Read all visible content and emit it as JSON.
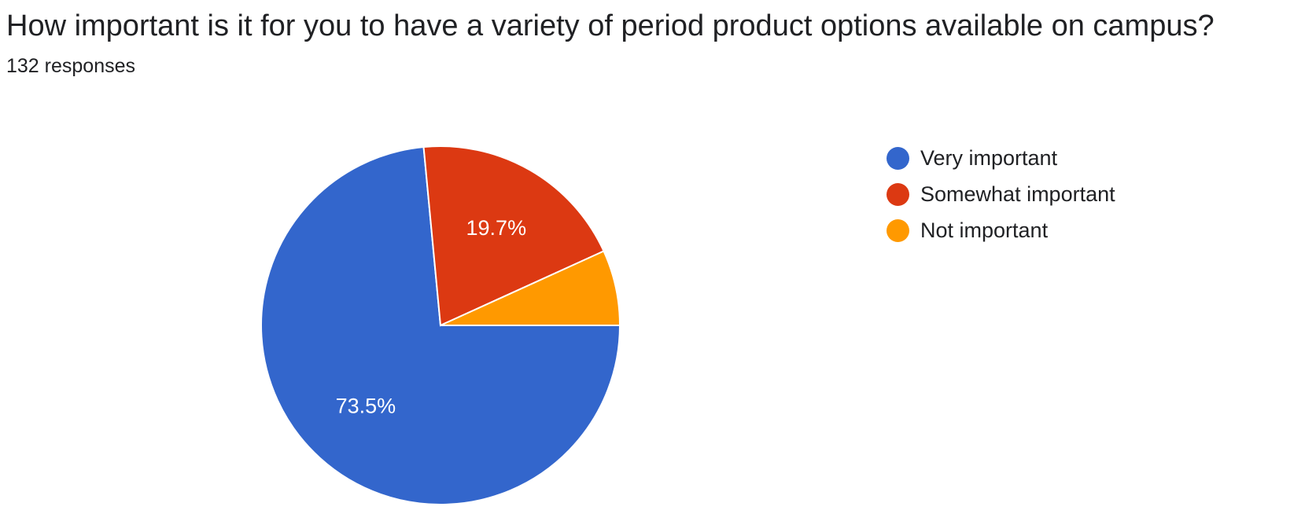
{
  "question": {
    "title": "How important is it for you to have a variety of period product options available on campus?",
    "response_count": "132 responses"
  },
  "chart_data": {
    "type": "pie",
    "title": "How important is it for you to have a variety of period product options available on campus?",
    "legend_position": "right",
    "slices": [
      {
        "label": "Very important",
        "percent": 73.5,
        "value_label": "73.5%",
        "color": "#3366cc"
      },
      {
        "label": "Somewhat important",
        "percent": 19.7,
        "value_label": "19.7%",
        "color": "#dc3912"
      },
      {
        "label": "Not important",
        "percent": 6.8,
        "value_label": "",
        "color": "#ff9900"
      }
    ]
  }
}
